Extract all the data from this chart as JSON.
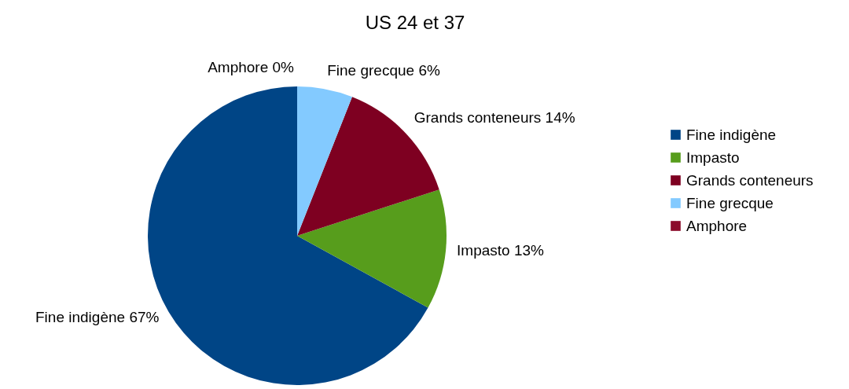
{
  "chart_data": {
    "type": "pie",
    "title": "US 24 et 37",
    "categories": [
      "Fine indigène",
      "Impasto",
      "Grands conteneurs",
      "Fine grecque",
      "Amphore"
    ],
    "values": [
      67,
      13,
      14,
      6,
      0
    ],
    "value_labels": [
      "67%",
      "13%",
      "14%",
      "6%",
      "0%"
    ],
    "colors": [
      "#004586",
      "#579d1c",
      "#7e0021",
      "#83caff",
      "#8b0a2a"
    ],
    "legend": "right"
  }
}
